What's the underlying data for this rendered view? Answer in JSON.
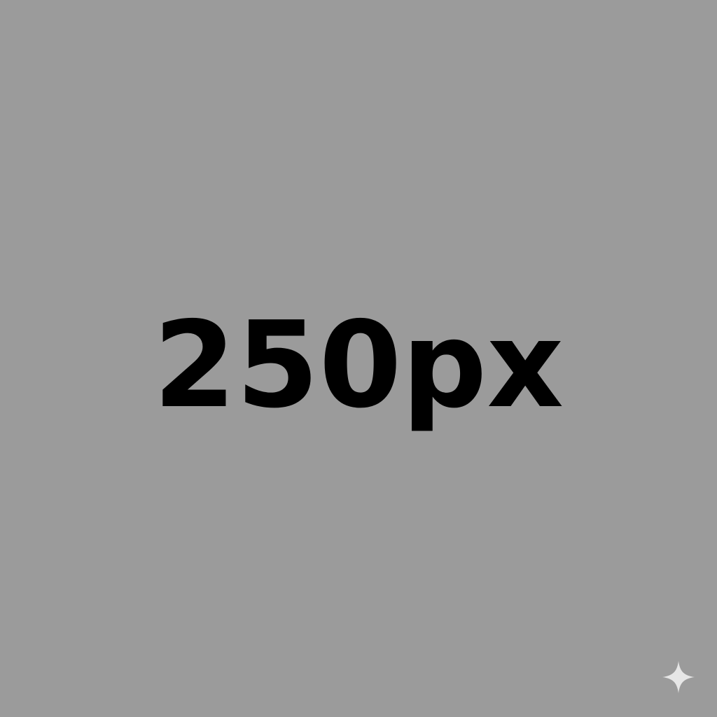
{
  "placeholder": {
    "label": "250px",
    "background_color": "#9b9b9b",
    "text_color": "#000000"
  },
  "watermark": {
    "icon": "sparkle-icon",
    "color": "#e6e6e6"
  }
}
